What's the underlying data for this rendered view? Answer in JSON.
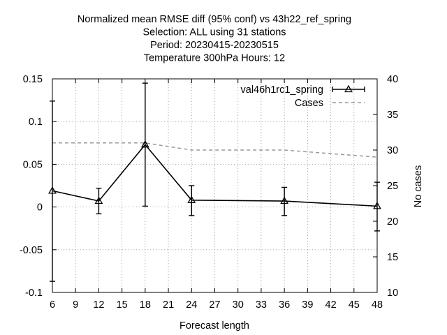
{
  "chart_data": {
    "type": "line",
    "title_lines": [
      "Normalized mean RMSE diff (95% conf) vs 43h22_ref_spring",
      "Selection: ALL using    31 stations",
      "Period: 20230415-20230515",
      "Temperature 300hPa   Hours:  12"
    ],
    "xlabel": "Forecast length",
    "ylabel": "",
    "y2label": "No cases",
    "xlim": [
      6,
      48
    ],
    "ylim": [
      -0.1,
      0.15
    ],
    "y2lim": [
      10,
      40
    ],
    "x_ticks": [
      6,
      9,
      12,
      15,
      18,
      21,
      24,
      27,
      30,
      33,
      36,
      39,
      42,
      45,
      48
    ],
    "y_ticks": [
      -0.1,
      -0.05,
      0,
      0.05,
      0.1,
      0.15
    ],
    "y_tick_labels": [
      "-0.1",
      "-0.05",
      "0",
      "0.05",
      "0.1",
      "0.15"
    ],
    "y2_ticks": [
      10,
      15,
      20,
      25,
      30,
      35,
      40
    ],
    "grid": true,
    "legend_position": "top-right",
    "series": [
      {
        "name": "val46h1rc1_spring",
        "axis": "y",
        "style": "line-errorbars-triangles",
        "color": "#000000",
        "x": [
          6,
          12,
          18,
          24,
          36,
          48
        ],
        "y": [
          0.019,
          0.007,
          0.073,
          0.008,
          0.007,
          0.001
        ],
        "err_low": [
          -0.087,
          -0.008,
          0.001,
          -0.01,
          -0.01,
          -0.028
        ],
        "err_high": [
          0.124,
          0.022,
          0.145,
          0.025,
          0.023,
          0.029
        ]
      },
      {
        "name": "Cases",
        "axis": "y2",
        "style": "dashed",
        "color": "#999999",
        "x": [
          6,
          12,
          18,
          24,
          36,
          48
        ],
        "y": [
          31,
          31,
          31,
          30,
          30,
          29
        ]
      }
    ]
  }
}
